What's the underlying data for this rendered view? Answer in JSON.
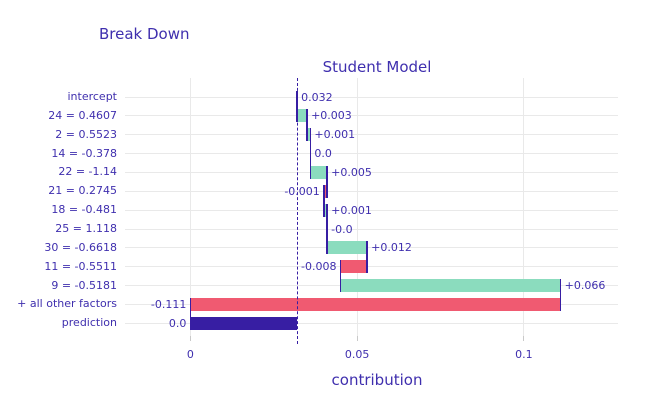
{
  "chart_data": {
    "type": "bar",
    "variant": "breakdown-waterfall",
    "title": "Break Down",
    "subtitle": "Student Model",
    "xlabel": "contribution",
    "ylabel": "",
    "xlim": [
      -0.0016,
      0.1282
    ],
    "x_ticks": [
      {
        "value": 0,
        "label": "0"
      },
      {
        "value": 0.05,
        "label": "0.05"
      },
      {
        "value": 0.1,
        "label": "0.1"
      }
    ],
    "baseline_value": 0.032,
    "grid": true,
    "legend": "none",
    "colors": {
      "positive": "#8bdcbe",
      "negative": "#f05a71",
      "neutral": "#371ea3",
      "connector": "#371ea3",
      "dashed_line": "#371ea3",
      "text": "#3f2fae",
      "grid": "#e9e9e9"
    },
    "rows": [
      {
        "label": "intercept",
        "value_label": "0.032",
        "contribution": 0.032,
        "start": 0.032,
        "end": 0.032,
        "kind": "neutral",
        "label_side": "right"
      },
      {
        "label": "24 = 0.4607",
        "value_label": "+0.003",
        "contribution": 0.003,
        "start": 0.032,
        "end": 0.035,
        "kind": "positive",
        "label_side": "right"
      },
      {
        "label": "2 = 0.5523",
        "value_label": "+0.001",
        "contribution": 0.001,
        "start": 0.035,
        "end": 0.036,
        "kind": "positive",
        "label_side": "right"
      },
      {
        "label": "14 = -0.378",
        "value_label": "0.0",
        "contribution": 0.0,
        "start": 0.036,
        "end": 0.036,
        "kind": "positive",
        "label_side": "right"
      },
      {
        "label": "22 = -1.14",
        "value_label": "+0.005",
        "contribution": 0.005,
        "start": 0.036,
        "end": 0.041,
        "kind": "positive",
        "label_side": "right"
      },
      {
        "label": "21 = 0.2745",
        "value_label": "-0.001",
        "contribution": -0.001,
        "start": 0.041,
        "end": 0.04,
        "kind": "negative",
        "label_side": "left"
      },
      {
        "label": "18 = -0.481",
        "value_label": "+0.001",
        "contribution": 0.001,
        "start": 0.04,
        "end": 0.041,
        "kind": "positive",
        "label_side": "right"
      },
      {
        "label": "25 = 1.118",
        "value_label": "-0.0",
        "contribution": 0.0,
        "start": 0.041,
        "end": 0.041,
        "kind": "negative",
        "label_side": "right"
      },
      {
        "label": "30 = -0.6618",
        "value_label": "+0.012",
        "contribution": 0.012,
        "start": 0.041,
        "end": 0.053,
        "kind": "positive",
        "label_side": "right"
      },
      {
        "label": "11 = -0.5511",
        "value_label": "-0.008",
        "contribution": -0.008,
        "start": 0.053,
        "end": 0.045,
        "kind": "negative",
        "label_side": "left"
      },
      {
        "label": "9 = -0.5181",
        "value_label": "+0.066",
        "contribution": 0.066,
        "start": 0.045,
        "end": 0.111,
        "kind": "positive",
        "label_side": "right"
      },
      {
        "label": "+ all other factors",
        "value_label": "-0.111",
        "contribution": -0.111,
        "start": 0.111,
        "end": 0.0,
        "kind": "negative",
        "label_side": "left"
      },
      {
        "label": "prediction",
        "value_label": "0.0",
        "contribution": 0.0,
        "start": 0.0,
        "end": 0.032,
        "kind": "neutral",
        "label_side": "left"
      }
    ]
  }
}
